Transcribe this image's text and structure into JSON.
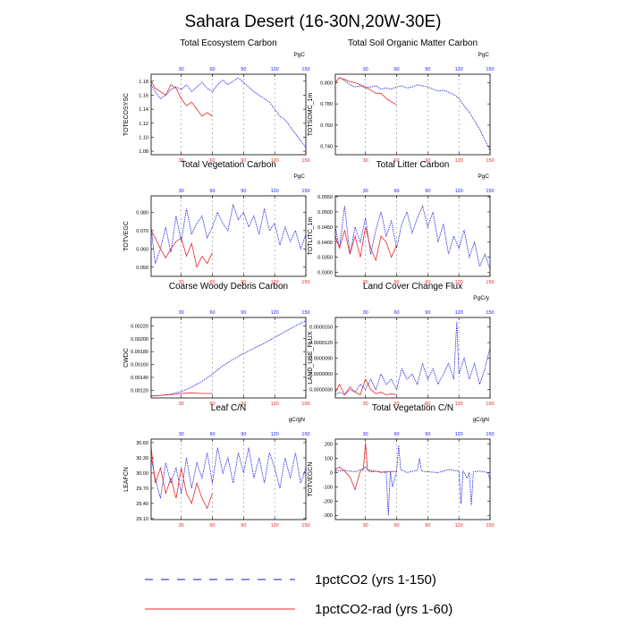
{
  "figure": {
    "title": "Sahara Desert (16-30N,20W-30E)",
    "colors": {
      "series1": "#1414e6",
      "series2": "#e8262a",
      "grid": "#8c8c8c"
    },
    "legend": [
      {
        "label": "1pctCO2 (yrs 1-150)",
        "style": "dashed",
        "color": "#1414e6"
      },
      {
        "label": "1pctCO2-rad (yrs 1-60)",
        "style": "solid",
        "color": "#e8262a"
      }
    ]
  },
  "chart_data": [
    {
      "type": "line",
      "title": "Total Ecosystem Carbon",
      "ylabel": "TOTECOSYSC",
      "unit": "PgC",
      "xlim": [
        1,
        150
      ],
      "xticks": [
        30,
        60,
        90,
        120,
        150
      ],
      "ylim": [
        1.075,
        1.19
      ],
      "yticks": [
        1.08,
        1.1,
        1.12,
        1.14,
        1.16,
        1.18
      ],
      "ytick_labels": [
        "1.08",
        "1.10",
        "1.12",
        "1.14",
        "1.16",
        "1.18"
      ],
      "vlines": [
        30,
        60,
        90,
        120
      ],
      "series": [
        {
          "x": [
            1,
            5,
            10,
            15,
            20,
            25,
            30,
            35,
            40,
            45,
            50,
            55,
            60,
            65,
            70,
            75,
            80,
            85,
            90,
            95,
            100,
            105,
            110,
            115,
            120,
            125,
            130,
            135,
            140,
            145,
            150
          ],
          "y": [
            1.175,
            1.165,
            1.155,
            1.16,
            1.168,
            1.172,
            1.168,
            1.175,
            1.165,
            1.172,
            1.178,
            1.17,
            1.165,
            1.175,
            1.182,
            1.175,
            1.18,
            1.185,
            1.178,
            1.172,
            1.165,
            1.16,
            1.155,
            1.15,
            1.14,
            1.13,
            1.125,
            1.115,
            1.105,
            1.095,
            1.085
          ]
        },
        {
          "x": [
            1,
            5,
            10,
            15,
            20,
            25,
            30,
            35,
            40,
            45,
            50,
            55,
            60
          ],
          "y": [
            1.18,
            1.17,
            1.165,
            1.16,
            1.175,
            1.17,
            1.155,
            1.145,
            1.15,
            1.14,
            1.13,
            1.135,
            1.13
          ]
        }
      ]
    },
    {
      "type": "line",
      "title": "Total Soil Organic Matter Carbon",
      "ylabel": "TOTSOMC_1m",
      "unit": "PgC",
      "xlim": [
        1,
        150
      ],
      "xticks": [
        30,
        60,
        90,
        120,
        150
      ],
      "ylim": [
        0.732,
        0.808
      ],
      "yticks": [
        0.74,
        0.76,
        0.78,
        0.8
      ],
      "ytick_labels": [
        "0.740",
        "0.760",
        "0.780",
        "0.800"
      ],
      "vlines": [
        30,
        60,
        90,
        120
      ],
      "series": [
        {
          "x": [
            1,
            5,
            10,
            15,
            20,
            25,
            30,
            35,
            40,
            45,
            50,
            55,
            60,
            65,
            70,
            75,
            80,
            85,
            90,
            95,
            100,
            105,
            110,
            115,
            120,
            125,
            130,
            135,
            140,
            145,
            150
          ],
          "y": [
            0.8,
            0.805,
            0.802,
            0.798,
            0.796,
            0.797,
            0.795,
            0.796,
            0.797,
            0.794,
            0.795,
            0.794,
            0.796,
            0.797,
            0.795,
            0.796,
            0.798,
            0.797,
            0.796,
            0.794,
            0.792,
            0.793,
            0.791,
            0.789,
            0.785,
            0.778,
            0.772,
            0.764,
            0.756,
            0.746,
            0.736
          ]
        },
        {
          "x": [
            1,
            5,
            10,
            15,
            20,
            25,
            30,
            35,
            40,
            45,
            50,
            55,
            60
          ],
          "y": [
            0.8,
            0.805,
            0.803,
            0.801,
            0.8,
            0.798,
            0.796,
            0.793,
            0.79,
            0.79,
            0.785,
            0.782,
            0.779
          ]
        }
      ]
    },
    {
      "type": "line",
      "title": "Total Vegetation Carbon",
      "ylabel": "TOTVEGC",
      "unit": "PgC",
      "xlim": [
        1,
        150
      ],
      "xticks": [
        30,
        60,
        90,
        120,
        150
      ],
      "ylim": [
        0.045,
        0.089
      ],
      "yticks": [
        0.05,
        0.06,
        0.07,
        0.08
      ],
      "ytick_labels": [
        "0.050",
        "0.060",
        "0.070",
        "0.080"
      ],
      "vlines": [
        30,
        60,
        90,
        120
      ],
      "series": [
        {
          "x": [
            1,
            5,
            10,
            15,
            20,
            25,
            30,
            35,
            40,
            45,
            50,
            55,
            60,
            65,
            70,
            75,
            80,
            85,
            90,
            95,
            100,
            105,
            110,
            115,
            120,
            125,
            130,
            135,
            140,
            145,
            150
          ],
          "y": [
            0.072,
            0.052,
            0.06,
            0.072,
            0.058,
            0.078,
            0.064,
            0.082,
            0.068,
            0.074,
            0.078,
            0.066,
            0.072,
            0.08,
            0.074,
            0.07,
            0.084,
            0.076,
            0.08,
            0.072,
            0.078,
            0.068,
            0.082,
            0.07,
            0.074,
            0.062,
            0.072,
            0.064,
            0.07,
            0.06,
            0.068
          ]
        },
        {
          "x": [
            1,
            5,
            10,
            15,
            20,
            25,
            30,
            35,
            40,
            45,
            50,
            55,
            60
          ],
          "y": [
            0.07,
            0.066,
            0.06,
            0.055,
            0.06,
            0.064,
            0.066,
            0.056,
            0.063,
            0.05,
            0.056,
            0.052,
            0.058
          ]
        }
      ]
    },
    {
      "type": "line",
      "title": "Total Litter Carbon",
      "ylabel": "TOTLITC_1m",
      "unit": "PgC",
      "xlim": [
        1,
        150
      ],
      "xticks": [
        30,
        60,
        90,
        120,
        150
      ],
      "ylim": [
        0.0287,
        0.0553
      ],
      "yticks": [
        0.03,
        0.035,
        0.04,
        0.045,
        0.05,
        0.055
      ],
      "ytick_labels": [
        "0.0300",
        "0.0350",
        "0.0400",
        "0.0450",
        "0.0500",
        "0.0550"
      ],
      "vlines": [
        30,
        60,
        90,
        120
      ],
      "series": [
        {
          "x": [
            1,
            5,
            10,
            15,
            20,
            25,
            30,
            35,
            40,
            45,
            50,
            55,
            60,
            65,
            70,
            75,
            80,
            85,
            90,
            95,
            100,
            105,
            110,
            115,
            120,
            125,
            130,
            135,
            140,
            145,
            150
          ],
          "y": [
            0.045,
            0.038,
            0.052,
            0.036,
            0.045,
            0.04,
            0.048,
            0.036,
            0.044,
            0.05,
            0.042,
            0.047,
            0.038,
            0.046,
            0.05,
            0.043,
            0.048,
            0.052,
            0.045,
            0.05,
            0.04,
            0.046,
            0.036,
            0.042,
            0.038,
            0.044,
            0.035,
            0.04,
            0.032,
            0.036,
            0.031
          ]
        },
        {
          "x": [
            1,
            5,
            10,
            15,
            20,
            25,
            30,
            35,
            40,
            45,
            50,
            55,
            60
          ],
          "y": [
            0.042,
            0.038,
            0.044,
            0.036,
            0.042,
            0.035,
            0.045,
            0.038,
            0.034,
            0.042,
            0.04,
            0.035,
            0.039
          ]
        }
      ]
    },
    {
      "type": "line",
      "title": "Coarse Woody Debris Carbon",
      "ylabel": "CWDC",
      "unit": "",
      "xlim": [
        1,
        150
      ],
      "xticks": [
        30,
        60,
        90,
        120,
        150
      ],
      "ylim": [
        0.00108,
        0.00233
      ],
      "yticks": [
        0.0012,
        0.0014,
        0.0016,
        0.0018,
        0.002,
        0.0022
      ],
      "ytick_labels": [
        "0.00120",
        "0.00140",
        "0.00160",
        "0.00180",
        "0.00200",
        "0.00220"
      ],
      "vlines": [
        30,
        60,
        90,
        120
      ],
      "series": [
        {
          "x": [
            1,
            10,
            20,
            30,
            40,
            50,
            60,
            70,
            80,
            90,
            100,
            110,
            120,
            130,
            140,
            150
          ],
          "y": [
            0.00111,
            0.00112,
            0.00114,
            0.00118,
            0.00125,
            0.00134,
            0.00145,
            0.00158,
            0.00168,
            0.00177,
            0.00185,
            0.00193,
            0.00202,
            0.00211,
            0.0022,
            0.00228
          ]
        },
        {
          "x": [
            1,
            10,
            20,
            30,
            40,
            50,
            60
          ],
          "y": [
            0.00111,
            0.00112,
            0.00113,
            0.00115,
            0.00116,
            0.00115,
            0.00115
          ]
        }
      ]
    },
    {
      "type": "line",
      "title": "Land Cover Change Flux",
      "ylabel": "LAND_USE_FLUX",
      "unit": "PgC/y",
      "xlim": [
        1,
        150
      ],
      "xticks": [
        30,
        60,
        90,
        120,
        150
      ],
      "ylim": [
        1.4e-06,
        1.68e-05
      ],
      "yticks": [
        3e-06,
        6e-06,
        9e-06,
        1.2e-05,
        1.5e-05
      ],
      "ytick_labels": [
        "0.0000030",
        "0.0000060",
        "0.0000090",
        "0.0000120",
        "0.0000150"
      ],
      "vlines": [
        30,
        60,
        90,
        120
      ],
      "series": [
        {
          "x": [
            1,
            5,
            10,
            15,
            20,
            25,
            30,
            35,
            40,
            45,
            50,
            55,
            60,
            65,
            70,
            75,
            80,
            85,
            90,
            95,
            100,
            105,
            110,
            115,
            118,
            120,
            125,
            130,
            135,
            140,
            145,
            150
          ],
          "y": [
            2e-06,
            2.5e-06,
            2e-06,
            3e-06,
            2.5e-06,
            4e-06,
            3e-06,
            5e-06,
            3e-06,
            6e-06,
            4e-06,
            5e-06,
            3e-06,
            7e-06,
            5e-06,
            6e-06,
            4e-06,
            8e-06,
            5e-06,
            7e-06,
            4e-06,
            6e-06,
            8e-06,
            5e-06,
            1.6e-05,
            6e-06,
            9e-06,
            5e-06,
            8e-06,
            4e-06,
            7e-06,
            1.1e-05
          ]
        },
        {
          "x": [
            1,
            5,
            10,
            15,
            20,
            25,
            30,
            35,
            40,
            45,
            50,
            55,
            60
          ],
          "y": [
            2.5e-06,
            4e-06,
            2e-06,
            3.5e-06,
            2.5e-06,
            2e-06,
            5e-06,
            3e-06,
            2.2e-06,
            2.5e-06,
            2e-06,
            2.2e-06,
            2e-06
          ]
        }
      ]
    },
    {
      "type": "line",
      "title": "Leaf C/N",
      "ylabel": "LEAFCN",
      "unit": "gC/gN",
      "xlim": [
        1,
        150
      ],
      "xticks": [
        30,
        60,
        90,
        120,
        150
      ],
      "ylim": [
        29.08,
        30.67
      ],
      "yticks": [
        29.1,
        29.4,
        29.7,
        30.0,
        30.3,
        30.6
      ],
      "ytick_labels": [
        "29.10",
        "29.40",
        "29.70",
        "30.00",
        "30.30",
        "30.60"
      ],
      "vlines": [
        30,
        60,
        90,
        120
      ],
      "series": [
        {
          "x": [
            1,
            5,
            10,
            15,
            20,
            25,
            30,
            35,
            40,
            45,
            50,
            55,
            60,
            65,
            70,
            75,
            80,
            85,
            90,
            95,
            100,
            105,
            110,
            115,
            120,
            125,
            130,
            135,
            140,
            145,
            150
          ],
          "y": [
            30.3,
            29.9,
            29.5,
            30.2,
            29.8,
            30.1,
            29.6,
            30.3,
            29.7,
            30.2,
            29.9,
            30.4,
            29.8,
            30.5,
            30.0,
            30.3,
            29.8,
            30.4,
            30.0,
            30.5,
            29.9,
            30.3,
            29.8,
            30.4,
            30.1,
            29.7,
            30.3,
            29.9,
            30.4,
            29.8,
            30.1
          ]
        },
        {
          "x": [
            1,
            5,
            10,
            15,
            20,
            25,
            30,
            35,
            40,
            45,
            50,
            55,
            60
          ],
          "y": [
            30.5,
            29.8,
            30.1,
            29.6,
            29.9,
            29.5,
            30.1,
            29.6,
            29.4,
            29.8,
            29.5,
            29.3,
            29.6
          ]
        }
      ]
    },
    {
      "type": "line",
      "title": "Total Vegetation C/N",
      "ylabel": "TOTVEGCN",
      "unit": "gC/gN",
      "xlim": [
        1,
        150
      ],
      "xticks": [
        30,
        60,
        90,
        120,
        150
      ],
      "ylim": [
        -330,
        235
      ],
      "yticks": [
        -300,
        -200,
        -100,
        0,
        100,
        200
      ],
      "ytick_labels": [
        "-300",
        "-200",
        "-100",
        "0",
        "100",
        "200"
      ],
      "vlines": [
        30,
        60,
        90,
        120
      ],
      "series": [
        {
          "x": [
            1,
            10,
            20,
            28,
            30,
            32,
            40,
            50,
            52,
            54,
            56,
            60,
            62,
            64,
            70,
            80,
            82,
            84,
            90,
            100,
            110,
            120,
            122,
            124,
            128,
            130,
            132,
            134,
            140,
            148,
            150
          ],
          "y": [
            10,
            15,
            5,
            30,
            40,
            20,
            10,
            0,
            -300,
            10,
            -100,
            5,
            190,
            20,
            0,
            15,
            100,
            10,
            5,
            0,
            20,
            10,
            -220,
            10,
            -40,
            0,
            -230,
            5,
            10,
            0,
            -60
          ]
        },
        {
          "x": [
            1,
            5,
            10,
            15,
            20,
            25,
            28,
            30,
            32,
            35,
            40,
            45,
            50,
            55,
            60
          ],
          "y": [
            20,
            40,
            10,
            -30,
            -120,
            10,
            20,
            210,
            15,
            5,
            10,
            0,
            8,
            5,
            10
          ]
        }
      ]
    }
  ]
}
